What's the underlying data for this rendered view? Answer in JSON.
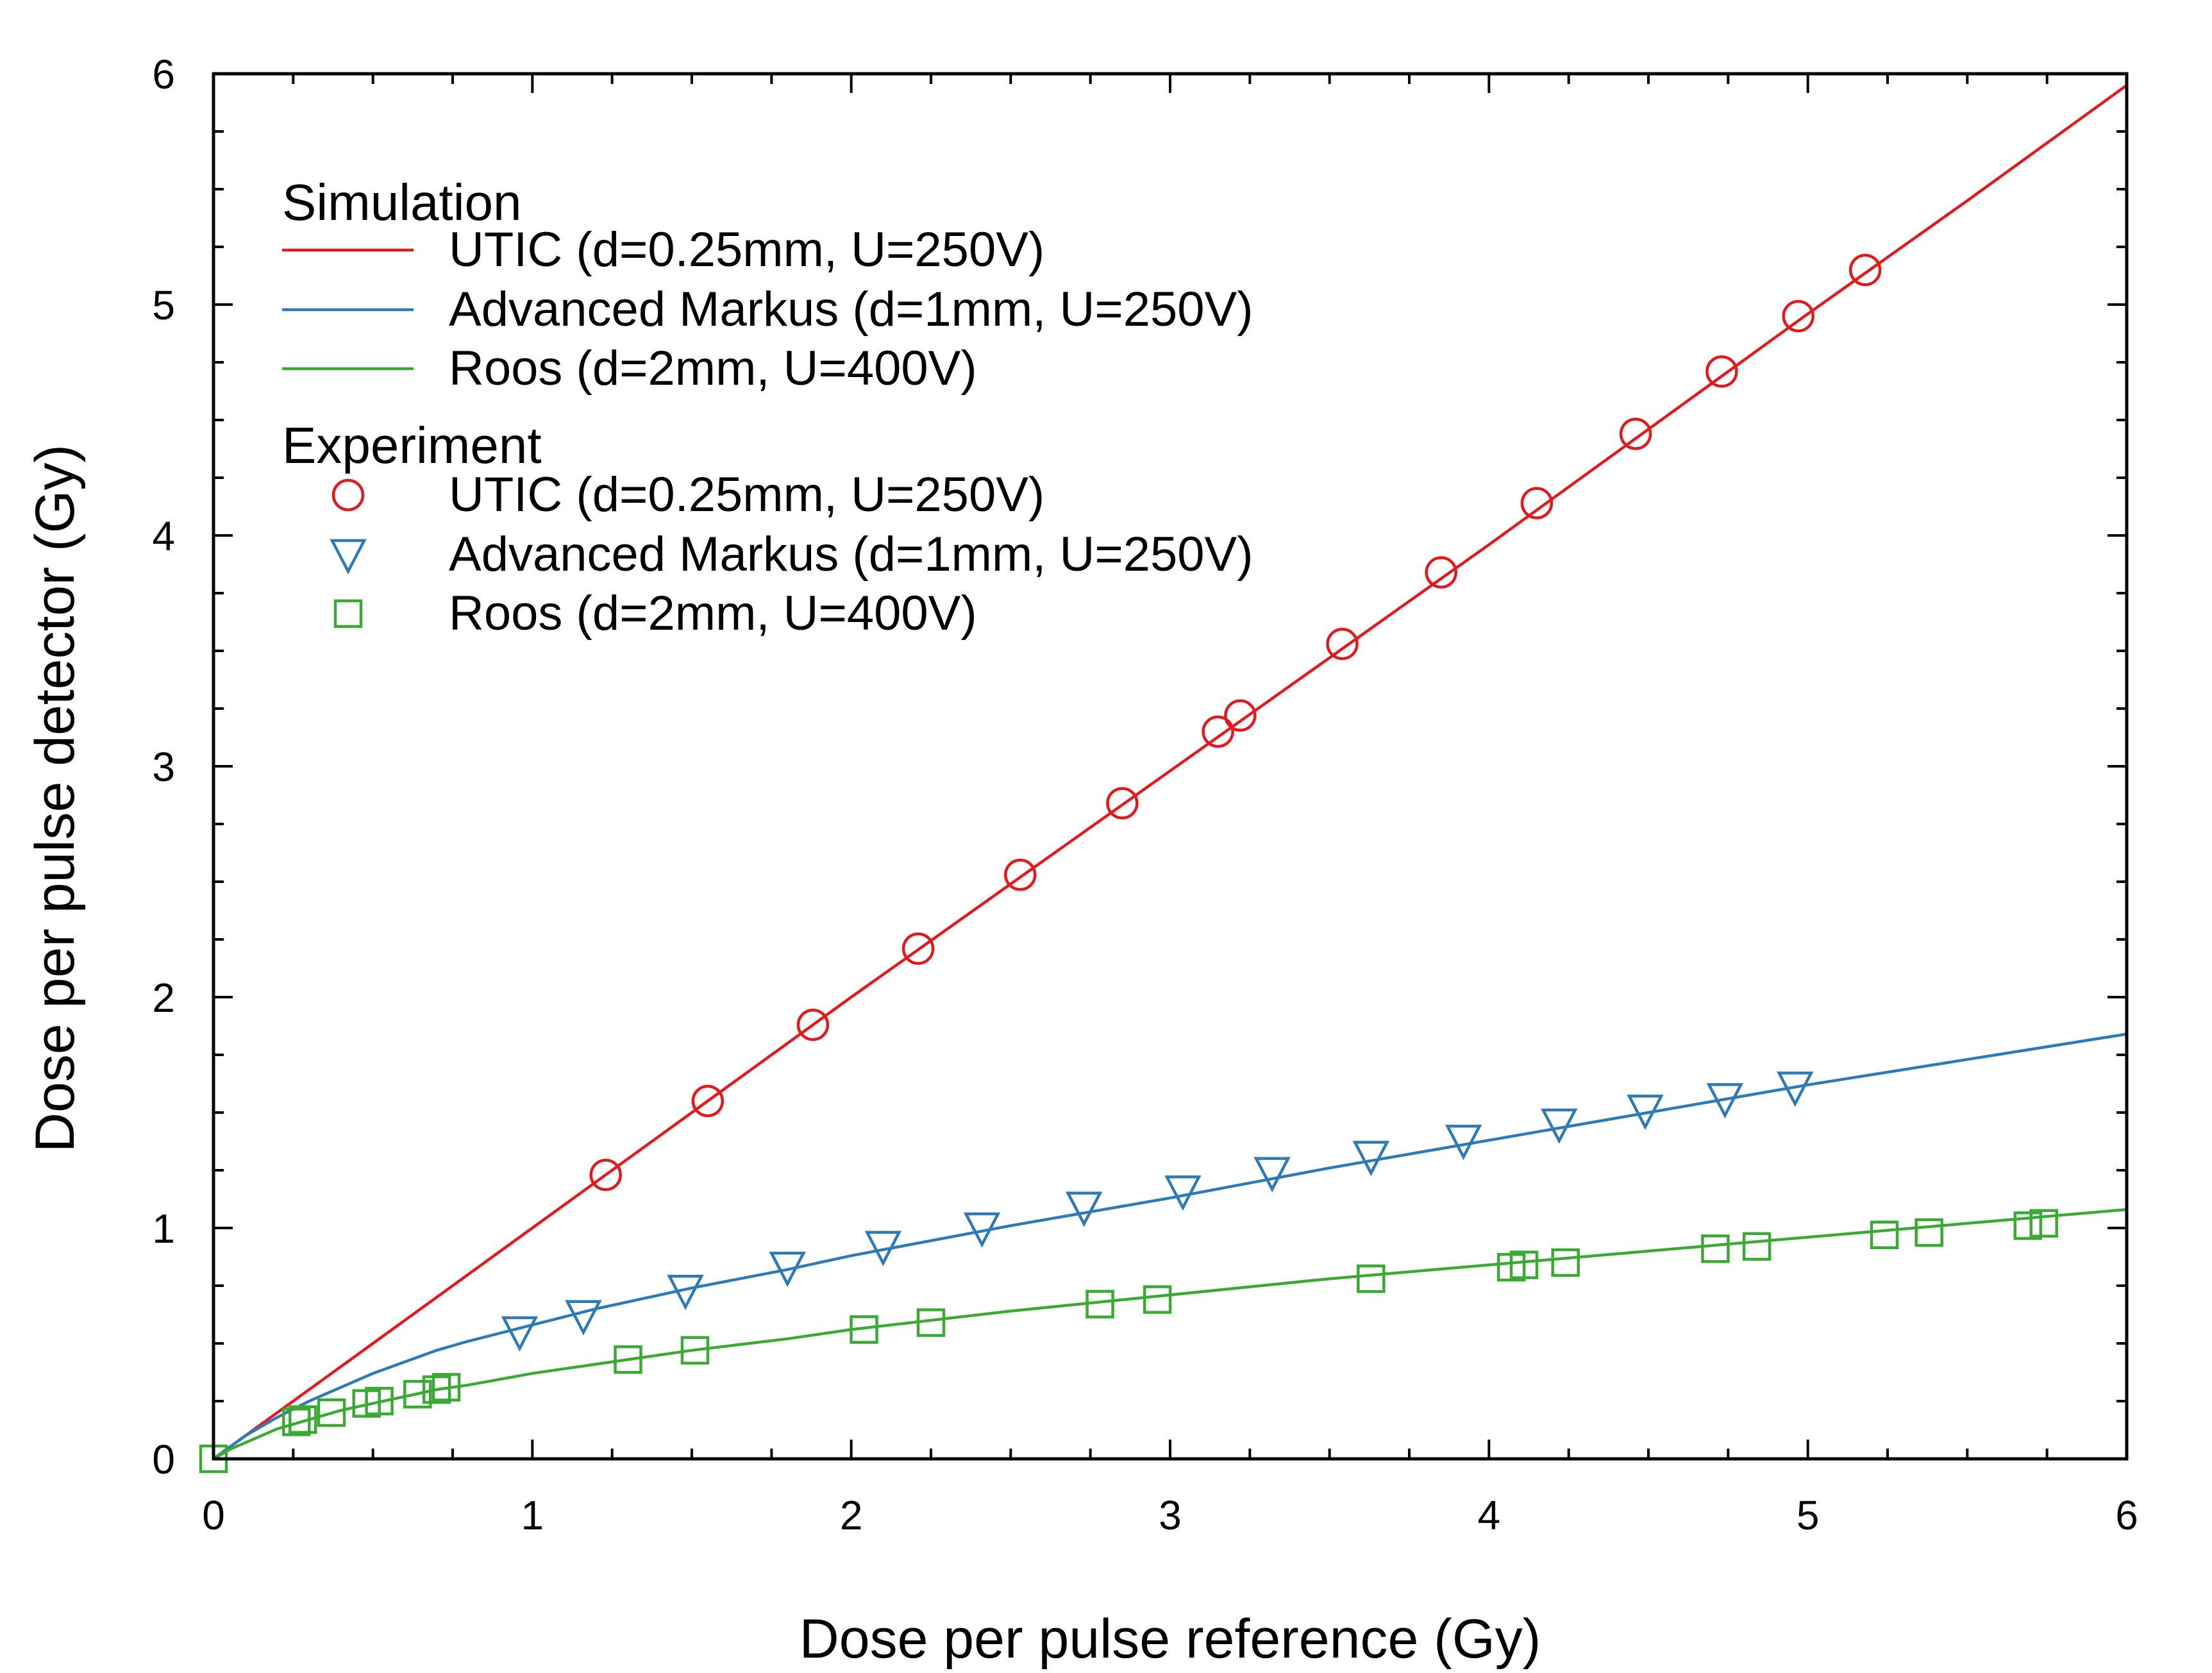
{
  "chart_data": {
    "type": "scatter",
    "xlabel": "Dose per pulse reference (Gy)",
    "ylabel": "Dose per pulse detector (Gy)",
    "xlim": [
      0,
      6
    ],
    "ylim": [
      0,
      6
    ],
    "xticks": [
      "0",
      "1",
      "2",
      "3",
      "4",
      "5",
      "6"
    ],
    "yticks": [
      "0",
      "1",
      "2",
      "3",
      "4",
      "5",
      "6"
    ],
    "grid": false,
    "legend": {
      "placement": "top-left",
      "simulation_header": "Simulation",
      "experiment_header": "Experiment"
    },
    "simulation": [
      {
        "name": "UTIC (d=0.25mm, U=250V)",
        "color": "#e31a1c",
        "x": [
          0,
          0.5,
          1,
          1.5,
          2,
          2.5,
          3,
          3.5,
          4,
          4.5,
          5,
          5.5,
          6
        ],
        "y": [
          0,
          0.5,
          1.0,
          1.5,
          2.0,
          2.49,
          2.98,
          3.47,
          3.96,
          4.46,
          4.96,
          5.45,
          5.95
        ]
      },
      {
        "name": "Advanced Markus (d=1mm, U=250V)",
        "color": "#2c7bb6",
        "x": [
          0,
          0.05,
          0.1,
          0.2,
          0.3,
          0.4,
          0.5,
          0.6,
          0.7,
          0.8,
          1.0,
          1.2,
          1.5,
          1.8,
          2.0,
          2.5,
          3.0,
          3.5,
          4.0,
          4.5,
          5.0,
          5.5,
          6.0
        ],
        "y": [
          0,
          0.05,
          0.1,
          0.18,
          0.25,
          0.31,
          0.37,
          0.42,
          0.47,
          0.51,
          0.58,
          0.65,
          0.74,
          0.82,
          0.88,
          1.01,
          1.13,
          1.26,
          1.38,
          1.5,
          1.62,
          1.73,
          1.84
        ]
      },
      {
        "name": "Roos (d=2mm, U=400V)",
        "color": "#3aaa35",
        "x": [
          0,
          0.05,
          0.1,
          0.2,
          0.3,
          0.4,
          0.5,
          0.6,
          0.7,
          0.8,
          1.0,
          1.2,
          1.5,
          1.8,
          2.0,
          2.5,
          3.0,
          3.5,
          4.0,
          4.5,
          5.0,
          5.5,
          6.0
        ],
        "y": [
          0,
          0.04,
          0.07,
          0.13,
          0.17,
          0.21,
          0.24,
          0.27,
          0.3,
          0.32,
          0.37,
          0.41,
          0.47,
          0.52,
          0.56,
          0.64,
          0.71,
          0.78,
          0.84,
          0.9,
          0.96,
          1.02,
          1.08
        ]
      }
    ],
    "experiment": [
      {
        "name": "UTIC (d=0.25mm, U=250V)",
        "marker": "circle",
        "color": "#e31a1c",
        "x": [
          1.23,
          1.55,
          1.88,
          2.21,
          2.53,
          2.85,
          3.15,
          3.22,
          3.54,
          3.85,
          4.15,
          4.46,
          4.73,
          4.97,
          5.18
        ],
        "y": [
          1.23,
          1.55,
          1.88,
          2.21,
          2.53,
          2.84,
          3.15,
          3.22,
          3.53,
          3.84,
          4.14,
          4.44,
          4.71,
          4.95,
          5.15
        ]
      },
      {
        "name": "Advanced Markus (d=1mm, U=250V)",
        "marker": "triangle-down",
        "color": "#2c7bb6",
        "x": [
          0.96,
          1.16,
          1.48,
          1.8,
          2.1,
          2.41,
          2.73,
          3.04,
          3.32,
          3.63,
          3.92,
          4.22,
          4.49,
          4.74,
          4.96
        ],
        "y": [
          0.55,
          0.62,
          0.73,
          0.83,
          0.92,
          1.0,
          1.09,
          1.16,
          1.24,
          1.31,
          1.38,
          1.45,
          1.51,
          1.56,
          1.61
        ]
      },
      {
        "name": "Roos (d=2mm, U=400V)",
        "marker": "square",
        "color": "#3aaa35",
        "x": [
          0,
          0.26,
          0.28,
          0.37,
          0.48,
          0.52,
          0.64,
          0.7,
          0.73,
          1.3,
          1.51,
          2.04,
          2.25,
          2.78,
          2.96,
          3.63,
          4.07,
          4.11,
          4.24,
          4.71,
          4.84,
          5.24,
          5.38,
          5.69,
          5.74
        ],
        "y": [
          0,
          0.16,
          0.17,
          0.2,
          0.24,
          0.25,
          0.28,
          0.3,
          0.31,
          0.43,
          0.47,
          0.56,
          0.59,
          0.67,
          0.69,
          0.78,
          0.83,
          0.84,
          0.85,
          0.91,
          0.92,
          0.97,
          0.98,
          1.01,
          1.02
        ]
      }
    ]
  }
}
